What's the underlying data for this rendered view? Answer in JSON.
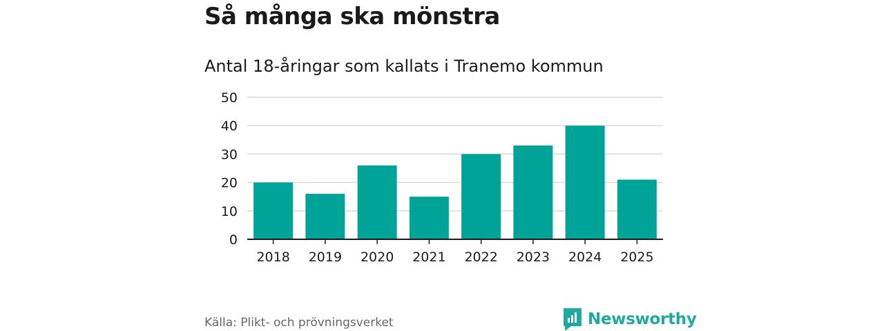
{
  "header": {
    "title": "Så många ska mönstra",
    "subtitle": "Antal 18-åringar som kallats i Tranemo kommun"
  },
  "footer": {
    "source": "Källa: Plikt- och prövningsverket",
    "brand": "Newsworthy"
  },
  "colors": {
    "bar": "#00a398",
    "grid": "#d9d9d9",
    "axis": "#1a1a1a",
    "brand": "#21a8a0"
  },
  "icons": {
    "brand_logo": "newsworthy-logo-icon"
  },
  "chart_data": {
    "type": "bar",
    "title": "Så många ska mönstra",
    "subtitle": "Antal 18-åringar som kallats i Tranemo kommun",
    "xlabel": "",
    "ylabel": "",
    "categories": [
      "2018",
      "2019",
      "2020",
      "2021",
      "2022",
      "2023",
      "2024",
      "2025"
    ],
    "values": [
      20,
      16,
      26,
      15,
      30,
      33,
      40,
      21
    ],
    "yticks": [
      0,
      10,
      20,
      30,
      40,
      50
    ],
    "ylim": [
      0,
      50
    ],
    "grid": true,
    "legend": "none"
  }
}
